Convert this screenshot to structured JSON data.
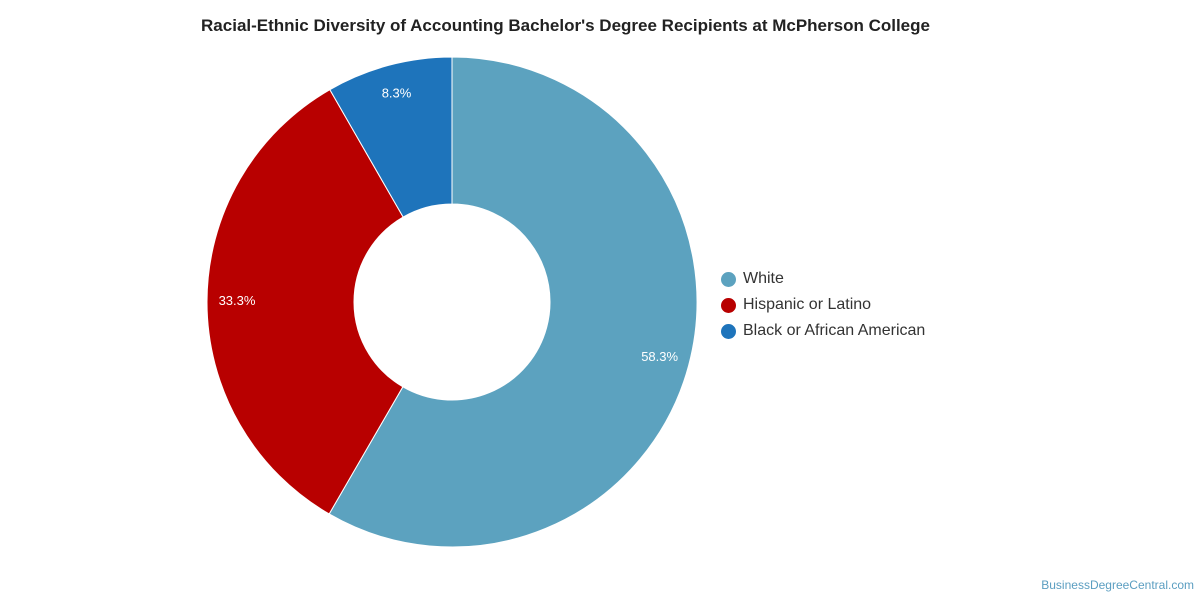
{
  "chart_data": {
    "type": "pie",
    "title": "Racial-Ethnic Diversity of Accounting Bachelor's Degree Recipients at McPherson College",
    "donut": true,
    "legend_position": "right",
    "slices": [
      {
        "label": "White",
        "value": 58.3,
        "value_label": "58.3%",
        "color": "#5ca2bf"
      },
      {
        "label": "Hispanic or Latino",
        "value": 33.3,
        "value_label": "33.3%",
        "color": "#b80000"
      },
      {
        "label": "Black or African American",
        "value": 8.3,
        "value_label": "8.3%",
        "color": "#1e74bb"
      }
    ]
  },
  "watermark": "BusinessDegreeCentral.com"
}
